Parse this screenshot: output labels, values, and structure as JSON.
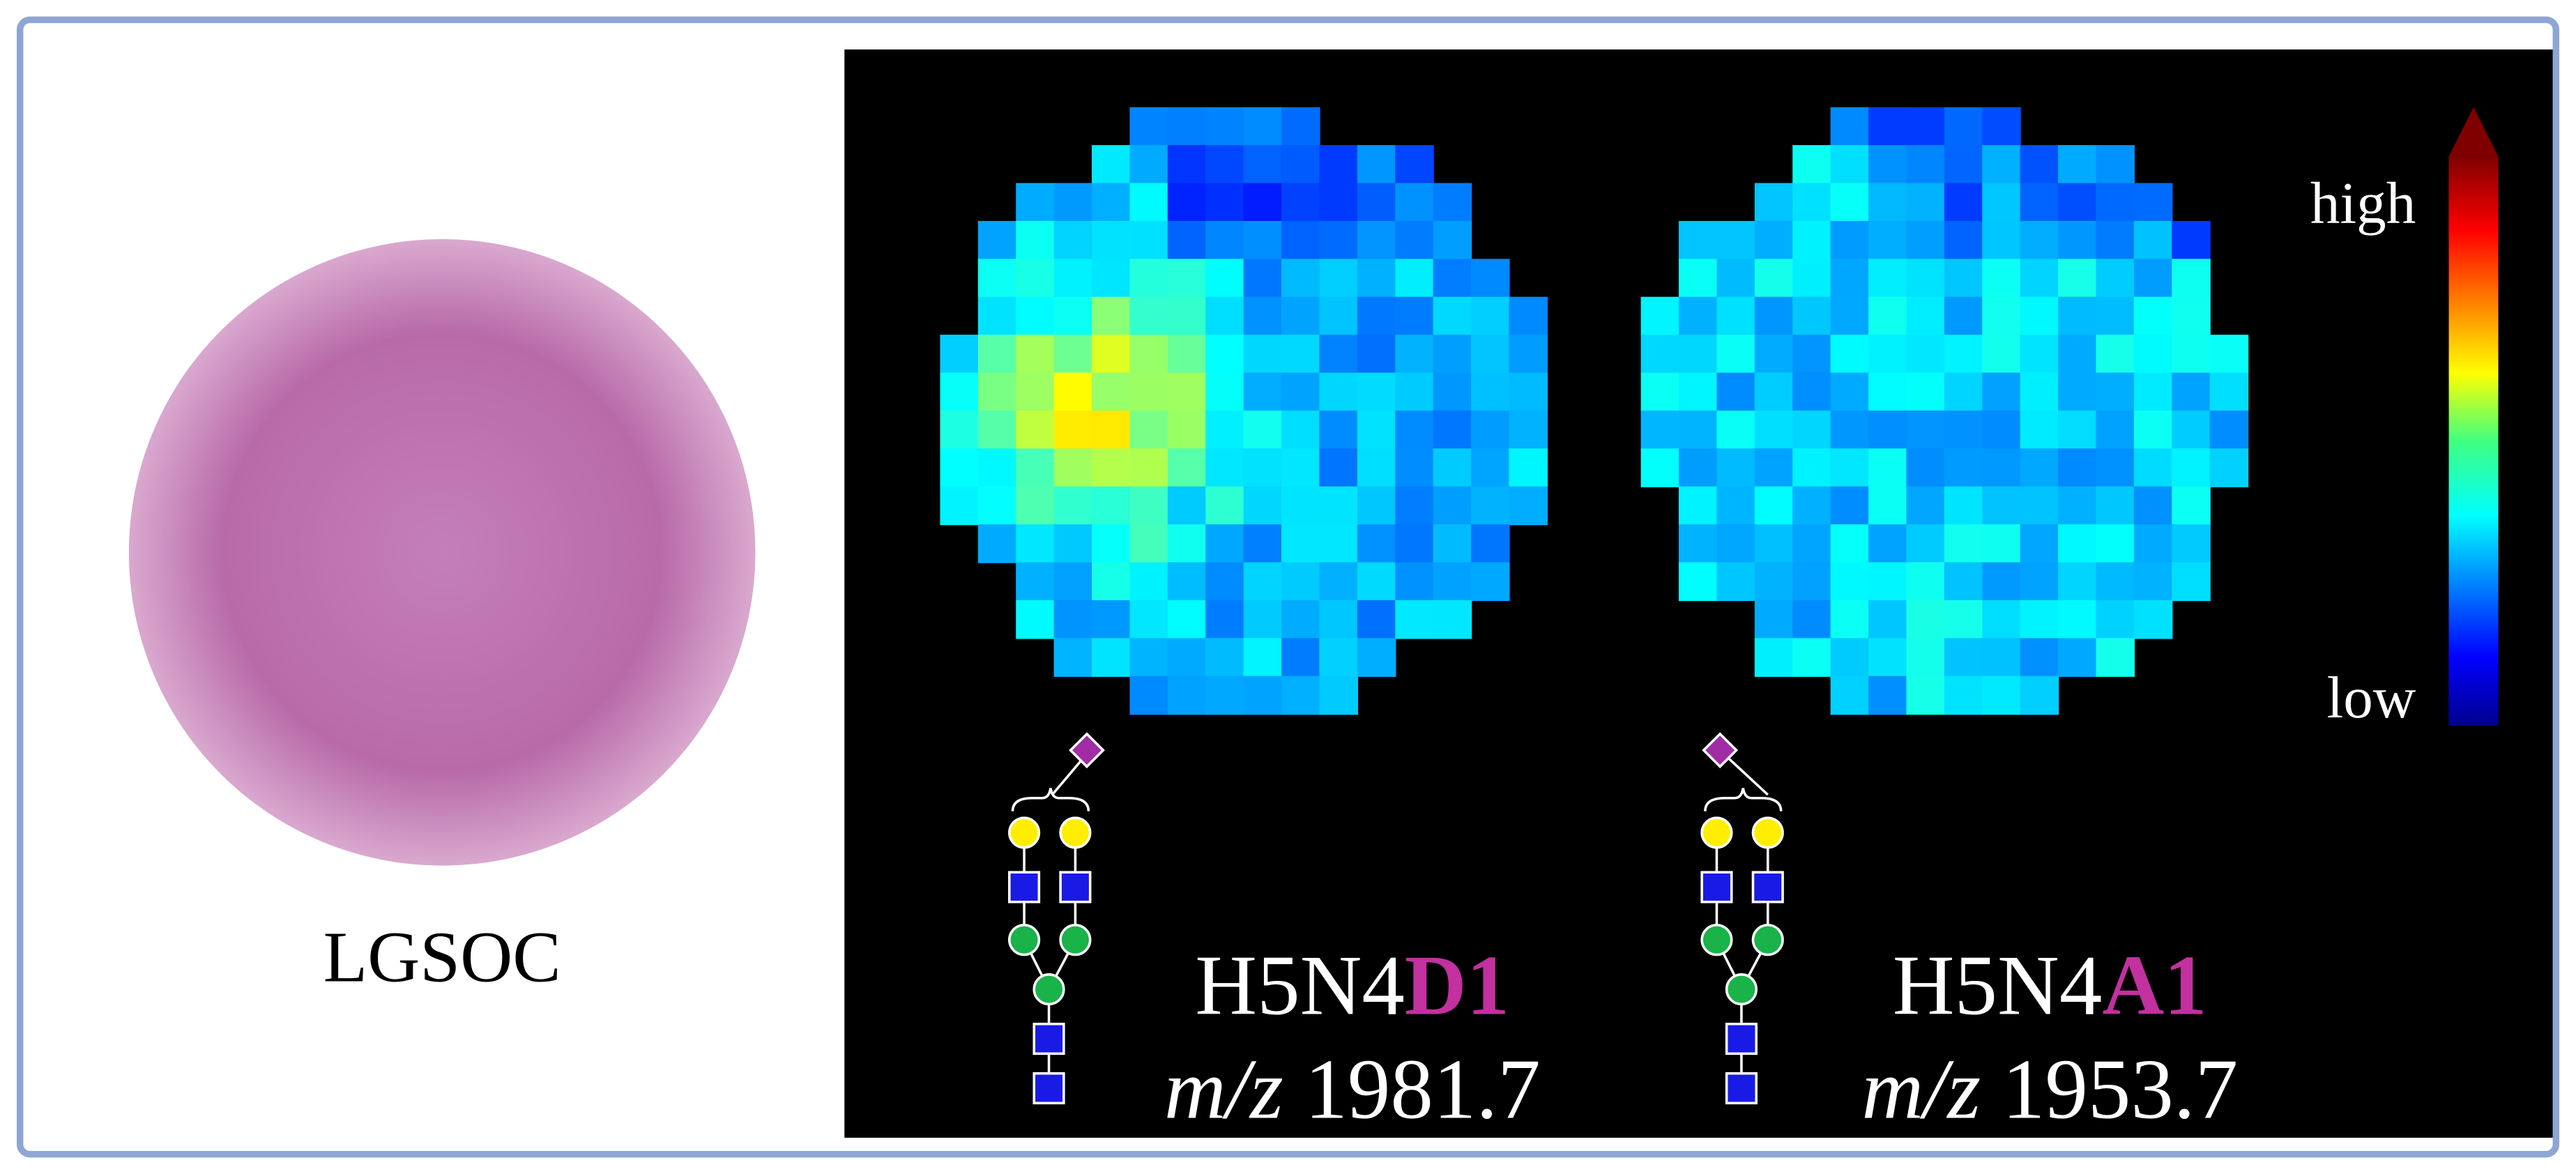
{
  "tissue": {
    "label": "LGSOC"
  },
  "maps": [
    {
      "composition": "H5N4",
      "linkage": "D1",
      "mz_label": "m/z",
      "mz": 1981.7
    },
    {
      "composition": "H5N4",
      "linkage": "A1",
      "mz_label": "m/z",
      "mz": 1953.7
    }
  ],
  "colorbar": {
    "high": "high",
    "low": "low"
  }
}
